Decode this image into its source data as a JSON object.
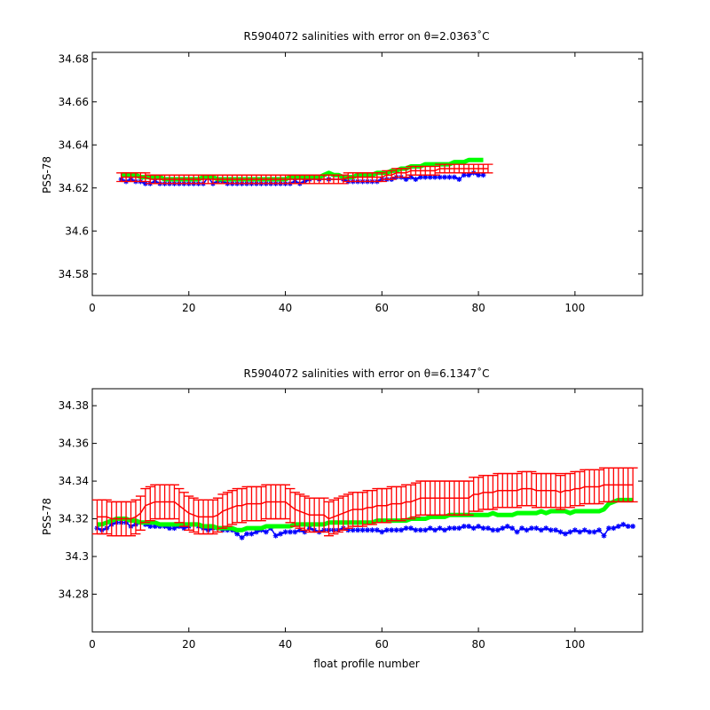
{
  "chart_data": [
    {
      "type": "line",
      "title": "R5904072 salinities with error on θ=2.0363˚C",
      "xlabel": "",
      "ylabel": "PSS-78",
      "xlim": [
        0,
        114
      ],
      "ylim": [
        34.57,
        34.683
      ],
      "xticks": [
        "0",
        "20",
        "40",
        "60",
        "80",
        "100"
      ],
      "yticks": [
        "34.58",
        "34.6",
        "34.62",
        "34.64",
        "34.66",
        "34.68"
      ],
      "grid": false,
      "x_start": 6,
      "series": [
        {
          "color": "#0000ff",
          "marker": "star",
          "values": [
            34.624,
            34.623,
            34.624,
            34.623,
            34.623,
            34.622,
            34.622,
            34.623,
            34.622,
            34.622,
            34.622,
            34.622,
            34.622,
            34.622,
            34.622,
            34.622,
            34.622,
            34.622,
            34.625,
            34.622,
            34.623,
            34.623,
            34.622,
            34.622,
            34.622,
            34.622,
            34.622,
            34.622,
            34.622,
            34.622,
            34.622,
            34.622,
            34.622,
            34.622,
            34.622,
            34.622,
            34.623,
            34.622,
            34.623,
            34.624,
            null,
            34.624,
            null,
            34.624,
            null,
            null,
            34.624,
            34.623,
            34.623,
            34.623,
            34.623,
            34.623,
            34.623,
            34.623,
            34.624,
            34.624,
            34.624,
            34.625,
            34.625,
            34.624,
            34.625,
            34.624,
            34.625,
            34.625,
            34.625,
            34.625,
            34.625,
            34.625,
            34.625,
            34.625,
            34.624,
            34.626,
            34.626,
            34.627,
            34.626,
            34.626
          ]
        },
        {
          "color": "#00ff00",
          "marker": "none",
          "values": [
            34.626,
            34.626,
            34.626,
            34.626,
            34.625,
            34.625,
            34.625,
            34.625,
            34.625,
            34.624,
            34.624,
            34.624,
            34.624,
            34.624,
            34.624,
            34.624,
            34.624,
            34.625,
            34.625,
            34.625,
            34.624,
            34.624,
            34.624,
            34.624,
            34.624,
            34.624,
            34.624,
            34.624,
            34.624,
            34.624,
            34.624,
            34.624,
            34.624,
            34.624,
            34.624,
            34.625,
            34.625,
            34.625,
            34.625,
            34.625,
            34.625,
            34.625,
            34.626,
            34.627,
            34.626,
            34.626,
            34.625,
            34.625,
            34.625,
            34.626,
            34.626,
            34.626,
            34.626,
            34.627,
            34.627,
            34.627,
            34.628,
            34.628,
            34.629,
            34.629,
            34.63,
            34.63,
            34.63,
            34.631,
            34.631,
            34.631,
            34.631,
            34.631,
            34.631,
            34.632,
            34.632,
            34.632,
            34.633,
            34.633,
            34.633,
            34.633
          ]
        },
        {
          "color": "#ff0000",
          "marker": "errorbar",
          "values": [
            34.625,
            34.625,
            34.625,
            34.625,
            34.625,
            34.625,
            34.624,
            34.624,
            34.624,
            34.624,
            34.624,
            34.624,
            34.624,
            34.624,
            34.624,
            34.624,
            34.624,
            34.624,
            34.624,
            34.624,
            34.624,
            34.624,
            34.624,
            34.624,
            34.624,
            34.624,
            34.624,
            34.624,
            34.624,
            34.624,
            34.624,
            34.624,
            34.624,
            34.624,
            34.624,
            34.624,
            34.624,
            34.624,
            34.624,
            34.624,
            34.624,
            34.624,
            34.624,
            34.624,
            34.624,
            34.624,
            34.624,
            34.625,
            34.625,
            34.625,
            34.625,
            34.625,
            34.625,
            34.625,
            34.625,
            34.626,
            34.626,
            34.627,
            34.627,
            34.627,
            34.628,
            34.628,
            34.628,
            34.628,
            34.628,
            34.628,
            34.629,
            34.629,
            34.629,
            34.629,
            34.629,
            34.629,
            34.629,
            34.629,
            34.629,
            34.629,
            34.629
          ],
          "error": 0.002
        }
      ]
    },
    {
      "type": "line",
      "title": "R5904072 salinities with error on θ=6.1347˚C",
      "xlabel": "float profile number",
      "ylabel": "PSS-78",
      "xlim": [
        0,
        114
      ],
      "ylim": [
        34.26,
        34.389
      ],
      "xticks": [
        "0",
        "20",
        "40",
        "60",
        "80",
        "100"
      ],
      "yticks": [
        "34.28",
        "34.3",
        "34.32",
        "34.34",
        "34.36",
        "34.38"
      ],
      "grid": false,
      "x_start": 1,
      "series": [
        {
          "color": "#0000ff",
          "marker": "star",
          "values": [
            34.315,
            34.314,
            34.315,
            34.317,
            34.318,
            34.318,
            34.318,
            34.316,
            34.317,
            34.318,
            34.317,
            34.316,
            34.316,
            34.316,
            34.316,
            34.315,
            34.315,
            34.316,
            34.315,
            34.316,
            34.317,
            34.316,
            34.315,
            34.314,
            34.315,
            34.315,
            34.314,
            34.314,
            34.314,
            34.312,
            34.31,
            34.312,
            34.312,
            34.313,
            34.314,
            34.313,
            34.315,
            34.311,
            34.312,
            34.313,
            34.313,
            34.313,
            34.314,
            34.313,
            34.315,
            34.314,
            34.313,
            34.314,
            34.314,
            34.314,
            34.314,
            34.315,
            34.314,
            34.314,
            34.314,
            34.314,
            34.314,
            34.314,
            34.314,
            34.313,
            34.314,
            34.314,
            34.314,
            34.314,
            34.315,
            34.315,
            34.314,
            34.314,
            34.314,
            34.315,
            34.314,
            34.315,
            34.314,
            34.315,
            34.315,
            34.315,
            34.316,
            34.316,
            34.315,
            34.316,
            34.315,
            34.315,
            34.314,
            34.314,
            34.315,
            34.316,
            34.315,
            34.313,
            34.315,
            34.314,
            34.315,
            34.315,
            34.314,
            34.315,
            34.314,
            34.314,
            34.313,
            34.312,
            34.313,
            34.314,
            34.313,
            34.314,
            34.313,
            34.313,
            34.314,
            34.311,
            34.315,
            34.315,
            34.316,
            34.317,
            34.316,
            34.316
          ]
        },
        {
          "color": "#00ff00",
          "marker": "none",
          "values": [
            34.317,
            34.317,
            34.318,
            34.319,
            34.32,
            34.32,
            34.32,
            34.319,
            34.319,
            34.318,
            34.318,
            34.318,
            34.318,
            34.317,
            34.317,
            34.317,
            34.317,
            34.317,
            34.317,
            34.317,
            34.317,
            34.317,
            34.316,
            34.316,
            34.316,
            34.315,
            34.315,
            34.315,
            34.315,
            34.314,
            34.314,
            34.315,
            34.315,
            34.315,
            34.315,
            34.316,
            34.316,
            34.316,
            34.316,
            34.316,
            34.316,
            34.317,
            34.317,
            34.317,
            34.317,
            34.317,
            34.317,
            34.317,
            34.318,
            34.318,
            34.318,
            34.318,
            34.318,
            34.318,
            34.318,
            34.318,
            34.318,
            34.318,
            34.319,
            34.319,
            34.319,
            34.319,
            34.319,
            34.319,
            34.319,
            34.32,
            34.32,
            34.32,
            34.32,
            34.321,
            34.321,
            34.321,
            34.321,
            34.322,
            34.322,
            34.322,
            34.322,
            34.322,
            34.322,
            34.322,
            34.322,
            34.322,
            34.323,
            34.322,
            34.322,
            34.322,
            34.322,
            34.323,
            34.323,
            34.323,
            34.323,
            34.323,
            34.324,
            34.323,
            34.324,
            34.324,
            34.324,
            34.324,
            34.323,
            34.324,
            34.324,
            34.324,
            34.324,
            34.324,
            34.324,
            34.325,
            34.328,
            34.329,
            34.33,
            34.33,
            34.33,
            34.33
          ]
        },
        {
          "color": "#ff0000",
          "marker": "errorbar",
          "values": [
            34.321,
            34.321,
            34.321,
            34.32,
            34.32,
            34.32,
            34.32,
            34.32,
            34.321,
            34.323,
            34.327,
            34.328,
            34.329,
            34.329,
            34.329,
            34.329,
            34.329,
            34.327,
            34.325,
            34.323,
            34.322,
            34.321,
            34.321,
            34.321,
            34.321,
            34.322,
            34.324,
            34.325,
            34.326,
            34.327,
            34.327,
            34.328,
            34.328,
            34.328,
            34.328,
            34.329,
            34.329,
            34.329,
            34.329,
            34.329,
            34.327,
            34.325,
            34.324,
            34.323,
            34.322,
            34.322,
            34.322,
            34.322,
            34.32,
            34.321,
            34.322,
            34.323,
            34.324,
            34.325,
            34.325,
            34.325,
            34.326,
            34.326,
            34.327,
            34.327,
            34.327,
            34.328,
            34.328,
            34.328,
            34.329,
            34.329,
            34.33,
            34.331,
            34.331,
            34.331,
            34.331,
            34.331,
            34.331,
            34.331,
            34.331,
            34.331,
            34.331,
            34.331,
            34.333,
            34.333,
            34.334,
            34.334,
            34.334,
            34.335,
            34.335,
            34.335,
            34.335,
            34.335,
            34.336,
            34.336,
            34.336,
            34.335,
            34.335,
            34.335,
            34.335,
            34.335,
            34.334,
            34.335,
            34.335,
            34.336,
            34.336,
            34.337,
            34.337,
            34.337,
            34.337,
            34.338,
            34.338,
            34.338,
            34.338,
            34.338,
            34.338,
            34.338
          ],
          "error": 0.009
        }
      ]
    }
  ]
}
